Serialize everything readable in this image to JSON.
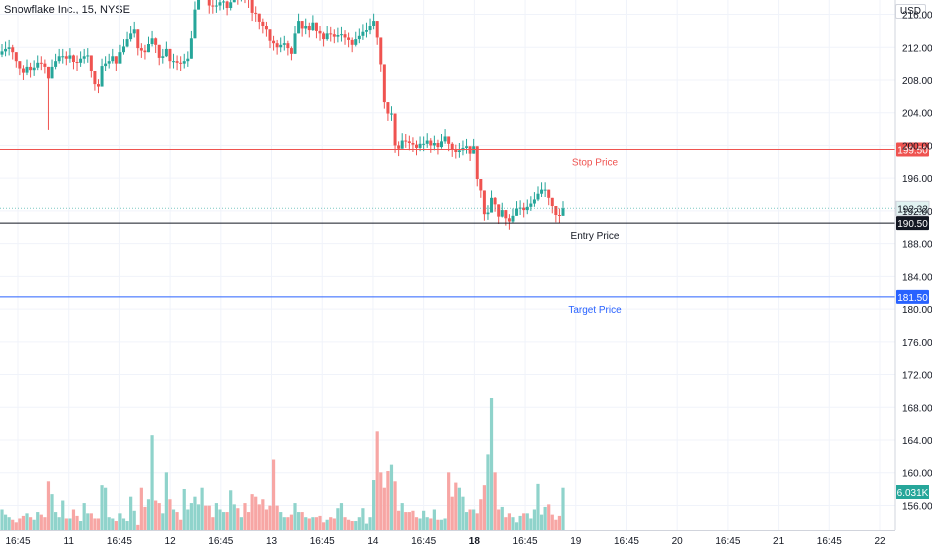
{
  "chart_data": {
    "type": "candlestick",
    "title": "Snowflake Inc., 15, NYSE",
    "currency": "USD",
    "y_axis": {
      "min": 153,
      "max": 219,
      "ticks": [
        156,
        160,
        164,
        168,
        172,
        176,
        180,
        184,
        188,
        192,
        196,
        200,
        204,
        208,
        212,
        216
      ]
    },
    "x_axis": {
      "tick_labels": [
        "16:45",
        "11",
        "16:45",
        "12",
        "16:45",
        "13",
        "16:45",
        "14",
        "16:45",
        "18",
        "16:45",
        "19",
        "16:45",
        "20",
        "16:45",
        "21",
        "16:45",
        "22"
      ],
      "bold_labels": [
        "18"
      ]
    },
    "levels": [
      {
        "name": "Stop Price",
        "value": 199.5,
        "label": "199.50",
        "color": "#ef5350",
        "bg": "#ef5350",
        "fg": "#ffffff"
      },
      {
        "name": "Entry Price",
        "value": 190.5,
        "label": "190.50",
        "color": "#131722",
        "bg": "#131722",
        "fg": "#ffffff"
      },
      {
        "name": "Target Price",
        "value": 181.5,
        "label": "181.50",
        "color": "#2962ff",
        "bg": "#2962ff",
        "fg": "#ffffff"
      }
    ],
    "last_price": {
      "value": 192.32,
      "label": "192.32",
      "color": "#26a69a"
    },
    "last_volume": {
      "label": "6.031K",
      "color": "#26a69a"
    },
    "colors": {
      "up": "#26a69a",
      "down": "#ef5350",
      "up_volume": "#8fd3cb",
      "down_volume": "#f7a6a4"
    },
    "candles_close": [
      211.5,
      211.8,
      212.0,
      211.4,
      210.3,
      209.4,
      208.9,
      209.6,
      209.2,
      209.5,
      210.1,
      210.0,
      209.6,
      208.2,
      209.6,
      210.3,
      210.9,
      210.9,
      210.6,
      211.0,
      210.2,
      210.1,
      210.6,
      210.9,
      211.0,
      209.1,
      207.5,
      207.2,
      209.7,
      210.0,
      210.3,
      210.9,
      210.0,
      211.4,
      212.1,
      213.0,
      213.7,
      214.2,
      211.9,
      211.6,
      211.4,
      212.4,
      213.1,
      212.3,
      210.7,
      210.9,
      211.8,
      210.3,
      210.3,
      210.1,
      210.0,
      210.3,
      210.6,
      213.1,
      216.6,
      219.2,
      219.3,
      218.9,
      217.1,
      217.0,
      217.1,
      217.5,
      217.6,
      216.8,
      217.5,
      219.1,
      218.2,
      218.6,
      218.4,
      217.8,
      216.2,
      216.1,
      215.1,
      214.6,
      214.2,
      212.8,
      212.5,
      212.0,
      212.3,
      212.5,
      211.9,
      211.2,
      213.7,
      215.2,
      214.3,
      214.6,
      214.1,
      215.0,
      214.0,
      213.7,
      213.0,
      213.7,
      213.6,
      213.3,
      213.5,
      213.6,
      213.2,
      212.9,
      212.3,
      213.0,
      213.4,
      213.9,
      214.1,
      214.6,
      215.2,
      213.2,
      209.9,
      205.3,
      203.9,
      203.9,
      200.0,
      199.6,
      200.6,
      200.5,
      200.3,
      200.1,
      199.7,
      200.2,
      200.2,
      200.6,
      200.0,
      200.3,
      199.8,
      200.5,
      201.1,
      200.2,
      199.5,
      199.2,
      199.4,
      199.7,
      199.9,
      199.0,
      199.9,
      195.9,
      194.5,
      191.6,
      191.8,
      193.6,
      192.8,
      191.3,
      192.1,
      191.1,
      190.7,
      191.4,
      192.3,
      192.4,
      192.1,
      192.5,
      192.9,
      193.4,
      194.1,
      194.6,
      194.6,
      193.6,
      192.6,
      191.5,
      191.4,
      192.32
    ],
    "candles_low": [
      210.8,
      210.9,
      211.0,
      210.5,
      209.5,
      208.6,
      208.0,
      208.6,
      208.3,
      208.5,
      209.2,
      209.2,
      208.8,
      201.9,
      208.7,
      209.3,
      210.0,
      210.0,
      209.8,
      210.1,
      209.3,
      209.1,
      209.6,
      210.0,
      210.1,
      208.3,
      206.7,
      206.4,
      208.8,
      209.1,
      209.4,
      210.0,
      209.1,
      210.4,
      211.1,
      212.0,
      212.7,
      213.2,
      211.0,
      210.7,
      210.5,
      211.4,
      212.1,
      211.3,
      209.8,
      210.0,
      210.8,
      209.4,
      209.4,
      209.2,
      209.1,
      209.4,
      209.6,
      212.1,
      215.4,
      217.9,
      218.1,
      217.8,
      216.1,
      216.1,
      216.2,
      216.5,
      216.6,
      215.9,
      216.5,
      218.0,
      217.2,
      217.6,
      217.4,
      216.8,
      215.2,
      215.1,
      214.2,
      213.7,
      213.3,
      211.9,
      211.6,
      211.1,
      211.4,
      211.6,
      211.0,
      210.4,
      212.6,
      214.1,
      213.3,
      213.6,
      213.2,
      214.0,
      213.1,
      212.8,
      212.1,
      212.8,
      212.7,
      212.5,
      212.6,
      212.7,
      212.3,
      212.0,
      211.4,
      212.1,
      212.5,
      212.9,
      213.2,
      213.6,
      214.2,
      212.3,
      209.0,
      204.5,
      203.0,
      203.0,
      199.1,
      198.7,
      199.7,
      199.7,
      199.4,
      199.2,
      198.8,
      199.3,
      199.3,
      199.7,
      199.1,
      199.4,
      198.9,
      199.6,
      200.2,
      199.3,
      198.6,
      198.4,
      198.5,
      198.8,
      199.0,
      198.1,
      199.0,
      195.0,
      193.6,
      190.8,
      190.9,
      192.7,
      191.9,
      190.4,
      191.2,
      190.2,
      189.7,
      190.5,
      191.4,
      191.5,
      191.2,
      191.6,
      192.0,
      192.5,
      193.2,
      193.7,
      193.7,
      192.7,
      191.7,
      190.6,
      190.5,
      191.4
    ],
    "candles_high": [
      212.4,
      212.7,
      212.9,
      212.3,
      211.2,
      210.3,
      209.8,
      210.5,
      210.1,
      210.4,
      211.0,
      210.9,
      210.5,
      209.6,
      210.5,
      211.2,
      211.8,
      211.8,
      211.5,
      211.9,
      211.1,
      211.0,
      211.5,
      211.8,
      211.9,
      210.0,
      208.4,
      208.1,
      210.6,
      210.9,
      211.2,
      211.8,
      210.9,
      212.3,
      213.0,
      213.9,
      214.6,
      215.1,
      212.8,
      212.5,
      212.3,
      213.3,
      214.0,
      213.2,
      211.6,
      211.8,
      212.7,
      211.2,
      211.2,
      211.0,
      210.9,
      211.2,
      211.5,
      214.0,
      217.6,
      219.5,
      219.5,
      219.5,
      218.0,
      217.9,
      218.0,
      218.4,
      218.5,
      217.7,
      218.4,
      219.5,
      219.1,
      219.5,
      219.3,
      218.7,
      217.1,
      217.0,
      216.0,
      215.5,
      215.1,
      213.7,
      213.4,
      212.9,
      213.2,
      213.4,
      212.8,
      212.1,
      214.6,
      216.1,
      215.2,
      215.5,
      215.0,
      215.9,
      214.9,
      214.6,
      213.9,
      214.6,
      214.5,
      214.2,
      214.4,
      214.5,
      214.1,
      213.8,
      213.2,
      213.9,
      214.3,
      214.8,
      215.0,
      215.5,
      216.1,
      214.1,
      210.8,
      206.2,
      204.8,
      204.8,
      200.9,
      200.5,
      201.5,
      201.4,
      201.2,
      201.0,
      200.6,
      201.1,
      201.1,
      201.5,
      200.9,
      201.2,
      200.7,
      201.4,
      202.0,
      201.1,
      200.4,
      200.1,
      200.3,
      200.6,
      200.8,
      199.9,
      200.8,
      196.8,
      195.4,
      192.5,
      192.7,
      194.5,
      193.7,
      192.2,
      193.0,
      192.0,
      191.6,
      192.3,
      193.2,
      193.3,
      193.0,
      193.4,
      193.8,
      194.3,
      195.0,
      195.5,
      195.5,
      194.5,
      193.5,
      192.4,
      192.3,
      193.2
    ],
    "volumes": [
      1.6,
      1.2,
      1.0,
      0.8,
      0.6,
      0.9,
      1.1,
      1.3,
      1.0,
      0.8,
      1.4,
      1.2,
      1.0,
      3.8,
      2.8,
      1.4,
      1.0,
      2.3,
      0.9,
      0.9,
      1.6,
      1.1,
      0.7,
      2.1,
      1.3,
      1.3,
      0.9,
      0.9,
      3.5,
      3.3,
      1.0,
      0.9,
      0.7,
      1.3,
      0.9,
      0.7,
      2.6,
      1.5,
      0.4,
      3.3,
      1.8,
      2.4,
      7.4,
      2.3,
      2.1,
      1.3,
      4.5,
      2.4,
      1.6,
      1.4,
      0.8,
      3.2,
      1.6,
      2.1,
      2.6,
      2.0,
      3.3,
      1.9,
      1.9,
      1.0,
      2.1,
      1.6,
      1.4,
      1.4,
      3.1,
      2.0,
      1.7,
      1.0,
      2.1,
      1.4,
      2.8,
      2.6,
      2.0,
      2.4,
      1.6,
      1.9,
      5.5,
      1.9,
      1.4,
      1.0,
      1.0,
      1.2,
      2.1,
      1.4,
      1.4,
      1.0,
      0.9,
      1.0,
      1.0,
      1.1,
      0.6,
      0.8,
      1.0,
      0.9,
      1.7,
      2.1,
      1.0,
      0.8,
      0.7,
      0.7,
      1.0,
      1.7,
      0.5,
      1.0,
      3.9,
      7.7,
      4.5,
      3.3,
      4.6,
      5.1,
      3.8,
      1.5,
      2.1,
      1.4,
      1.4,
      1.5,
      1.0,
      0.9,
      1.5,
      1.0,
      0.9,
      1.6,
      0.8,
      0.8,
      0.9,
      4.5,
      2.6,
      3.7,
      3.3,
      2.6,
      1.4,
      1.6,
      1.6,
      1.3,
      2.4,
      3.5,
      5.9,
      10.3,
      4.5,
      1.6,
      1.8,
      1.0,
      1.3,
      1.0,
      0.6,
      1.1,
      1.3,
      1.3,
      0.9,
      1.6,
      3.6,
      1.2,
      1.8,
      2.0,
      1.2,
      0.8,
      1.1,
      3.3
    ]
  }
}
